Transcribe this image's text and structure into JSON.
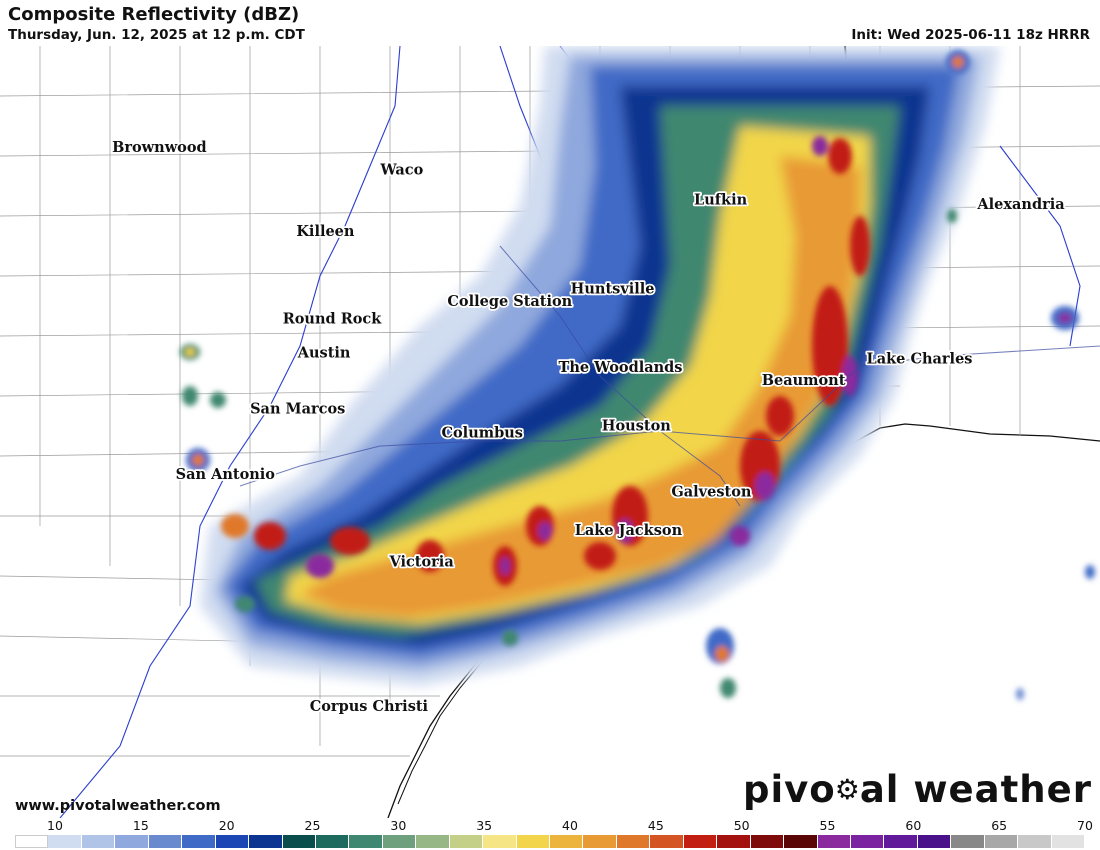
{
  "header": {
    "title": "Composite Reflectivity (dBZ)",
    "valid_time": "Thursday, Jun. 12, 2025 at 12 p.m. CDT",
    "init": "Init: Wed 2025-06-11 18z HRRR"
  },
  "map": {
    "cities": [
      {
        "name": "Brownwood",
        "lon": -98.99,
        "lat": 31.71
      },
      {
        "name": "Waco",
        "lon": -97.15,
        "lat": 31.55
      },
      {
        "name": "Killeen",
        "lon": -97.73,
        "lat": 31.12
      },
      {
        "name": "Lufkin",
        "lon": -94.73,
        "lat": 31.34
      },
      {
        "name": "Alexandria",
        "lon": -92.45,
        "lat": 31.31
      },
      {
        "name": "Huntsville",
        "lon": -95.55,
        "lat": 30.72
      },
      {
        "name": "College Station",
        "lon": -96.33,
        "lat": 30.63
      },
      {
        "name": "Round Rock",
        "lon": -97.68,
        "lat": 30.51
      },
      {
        "name": "Austin",
        "lon": -97.74,
        "lat": 30.27
      },
      {
        "name": "The Woodlands",
        "lon": -95.49,
        "lat": 30.17
      },
      {
        "name": "Lake Charles",
        "lon": -93.22,
        "lat": 30.23
      },
      {
        "name": "Beaumont",
        "lon": -94.1,
        "lat": 30.08
      },
      {
        "name": "San Marcos",
        "lon": -97.94,
        "lat": 29.88
      },
      {
        "name": "Houston",
        "lon": -95.37,
        "lat": 29.76
      },
      {
        "name": "Columbus",
        "lon": -96.54,
        "lat": 29.71
      },
      {
        "name": "San Antonio",
        "lon": -98.49,
        "lat": 29.42
      },
      {
        "name": "Galveston",
        "lon": -94.8,
        "lat": 29.3
      },
      {
        "name": "Lake Jackson",
        "lon": -95.43,
        "lat": 29.03
      },
      {
        "name": "Victoria",
        "lon": -97.0,
        "lat": 28.81
      },
      {
        "name": "Corpus Christi",
        "lon": -97.4,
        "lat": 27.8
      }
    ]
  },
  "footer": {
    "website": "www.pivotalweather.com",
    "brand_part1": "pivo",
    "brand_part2": "al weather"
  },
  "scale": {
    "tick_labels": [
      "10",
      "15",
      "20",
      "25",
      "30",
      "35",
      "40",
      "45",
      "50",
      "55",
      "60",
      "65",
      "70"
    ],
    "colors": [
      "#ffffff",
      "#d0dcf0",
      "#b0c4e8",
      "#8fa8dd",
      "#6a8ad0",
      "#3f6ac6",
      "#1c46b4",
      "#0b3590",
      "#0a4d4d",
      "#1d6b5e",
      "#3f8770",
      "#6ea07e",
      "#97b886",
      "#c4cf88",
      "#f6e585",
      "#f2d54a",
      "#ecb43c",
      "#e89a35",
      "#e0782c",
      "#d55423",
      "#c21f12",
      "#a3120e",
      "#7e0a0a",
      "#5a0606",
      "#8a2a9e",
      "#7a22a0",
      "#611a9a",
      "#4a128a",
      "#888888",
      "#a8a8a8",
      "#c8c8c8",
      "#e2e2e2"
    ]
  }
}
